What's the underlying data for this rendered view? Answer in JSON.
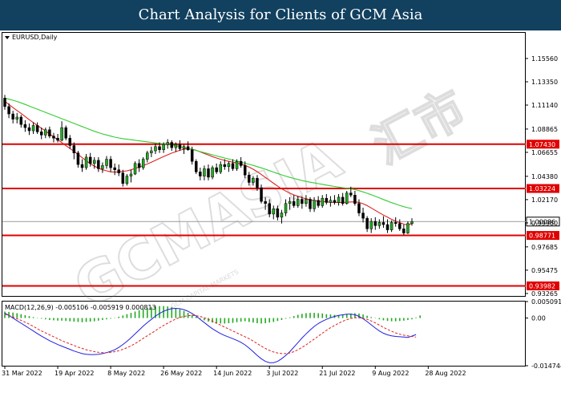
{
  "header": {
    "title": "Chart Analysis for Clients of GCM Asia"
  },
  "chart_data": {
    "type": "candlestick",
    "symbol_label": "EURUSD,Daily",
    "price_ylim": [
      0.9303,
      1.1799
    ],
    "price_ticks": [
      "1.15560",
      "1.13350",
      "1.11140",
      "1.08865",
      "1.06655",
      "1.04380",
      "1.02170",
      "0.99960",
      "0.97685",
      "0.95475",
      "0.93265"
    ],
    "current_price": "1.00086",
    "current_price_value": 1.00086,
    "horizontal_levels": [
      {
        "label": "1.07430",
        "value": 1.0743
      },
      {
        "label": "1.03224",
        "value": 1.03224
      },
      {
        "label": "0.98771",
        "value": 0.98771
      },
      {
        "label": "0.93982",
        "value": 0.93982
      }
    ],
    "x_tick_labels": [
      "31 Mar 2022",
      "19 Apr 2022",
      "8 May 2022",
      "26 May 2022",
      "14 Jun 2022",
      "3 Jul 2022",
      "21 Jul 2022",
      "9 Aug 2022",
      "28 Aug 2022"
    ],
    "x_tick_bar_index": [
      0,
      13,
      26,
      39,
      52,
      65,
      78,
      91,
      104
    ],
    "candles": [
      [
        1.118,
        1.121,
        1.107,
        1.11
      ],
      [
        1.11,
        1.113,
        1.099,
        1.103
      ],
      [
        1.103,
        1.106,
        1.094,
        1.098
      ],
      [
        1.098,
        1.104,
        1.094,
        1.1
      ],
      [
        1.1,
        1.102,
        1.09,
        1.093
      ],
      [
        1.093,
        1.097,
        1.086,
        1.09
      ],
      [
        1.09,
        1.094,
        1.083,
        1.087
      ],
      [
        1.087,
        1.095,
        1.084,
        1.092
      ],
      [
        1.092,
        1.095,
        1.084,
        1.086
      ],
      [
        1.086,
        1.09,
        1.079,
        1.083
      ],
      [
        1.083,
        1.09,
        1.08,
        1.088
      ],
      [
        1.088,
        1.091,
        1.08,
        1.082
      ],
      [
        1.082,
        1.085,
        1.076,
        1.08
      ],
      [
        1.08,
        1.084,
        1.076,
        1.078
      ],
      [
        1.078,
        1.096,
        1.077,
        1.09
      ],
      [
        1.09,
        1.092,
        1.078,
        1.08
      ],
      [
        1.08,
        1.083,
        1.07,
        1.073
      ],
      [
        1.073,
        1.076,
        1.06,
        1.066
      ],
      [
        1.066,
        1.068,
        1.052,
        1.055
      ],
      [
        1.055,
        1.06,
        1.048,
        1.052
      ],
      [
        1.052,
        1.065,
        1.05,
        1.062
      ],
      [
        1.062,
        1.066,
        1.053,
        1.056
      ],
      [
        1.056,
        1.062,
        1.051,
        1.059
      ],
      [
        1.059,
        1.062,
        1.048,
        1.051
      ],
      [
        1.051,
        1.057,
        1.047,
        1.054
      ],
      [
        1.054,
        1.063,
        1.051,
        1.06
      ],
      [
        1.06,
        1.063,
        1.048,
        1.052
      ],
      [
        1.052,
        1.056,
        1.045,
        1.05
      ],
      [
        1.05,
        1.055,
        1.044,
        1.047
      ],
      [
        1.047,
        1.05,
        1.034,
        1.037
      ],
      [
        1.037,
        1.046,
        1.035,
        1.044
      ],
      [
        1.044,
        1.05,
        1.038,
        1.046
      ],
      [
        1.046,
        1.058,
        1.045,
        1.056
      ],
      [
        1.056,
        1.06,
        1.048,
        1.052
      ],
      [
        1.052,
        1.062,
        1.05,
        1.06
      ],
      [
        1.06,
        1.068,
        1.057,
        1.066
      ],
      [
        1.066,
        1.072,
        1.062,
        1.068
      ],
      [
        1.068,
        1.075,
        1.065,
        1.072
      ],
      [
        1.072,
        1.076,
        1.066,
        1.069
      ],
      [
        1.069,
        1.076,
        1.066,
        1.074
      ],
      [
        1.074,
        1.079,
        1.07,
        1.076
      ],
      [
        1.076,
        1.078,
        1.068,
        1.071
      ],
      [
        1.071,
        1.076,
        1.067,
        1.074
      ],
      [
        1.074,
        1.078,
        1.068,
        1.07
      ],
      [
        1.07,
        1.074,
        1.065,
        1.072
      ],
      [
        1.072,
        1.077,
        1.068,
        1.069
      ],
      [
        1.069,
        1.072,
        1.055,
        1.058
      ],
      [
        1.058,
        1.06,
        1.046,
        1.048
      ],
      [
        1.048,
        1.052,
        1.04,
        1.044
      ],
      [
        1.044,
        1.054,
        1.04,
        1.051
      ],
      [
        1.051,
        1.055,
        1.04,
        1.043
      ],
      [
        1.043,
        1.054,
        1.041,
        1.052
      ],
      [
        1.052,
        1.056,
        1.046,
        1.048
      ],
      [
        1.048,
        1.058,
        1.046,
        1.055
      ],
      [
        1.055,
        1.06,
        1.05,
        1.053
      ],
      [
        1.053,
        1.058,
        1.048,
        1.056
      ],
      [
        1.056,
        1.06,
        1.049,
        1.051
      ],
      [
        1.051,
        1.06,
        1.049,
        1.058
      ],
      [
        1.058,
        1.062,
        1.052,
        1.054
      ],
      [
        1.054,
        1.058,
        1.042,
        1.045
      ],
      [
        1.045,
        1.048,
        1.035,
        1.038
      ],
      [
        1.038,
        1.044,
        1.035,
        1.042
      ],
      [
        1.042,
        1.045,
        1.03,
        1.033
      ],
      [
        1.033,
        1.036,
        1.018,
        1.02
      ],
      [
        1.02,
        1.024,
        1.012,
        1.018
      ],
      [
        1.018,
        1.022,
        1.005,
        1.008
      ],
      [
        1.008,
        1.016,
        1.003,
        1.013
      ],
      [
        1.013,
        1.016,
        1.002,
        1.005
      ],
      [
        1.005,
        1.012,
        0.999,
        1.009
      ],
      [
        1.009,
        1.022,
        1.006,
        1.018
      ],
      [
        1.018,
        1.024,
        1.012,
        1.02
      ],
      [
        1.02,
        1.026,
        1.014,
        1.016
      ],
      [
        1.016,
        1.025,
        1.014,
        1.022
      ],
      [
        1.022,
        1.025,
        1.013,
        1.018
      ],
      [
        1.018,
        1.026,
        1.015,
        1.022
      ],
      [
        1.022,
        1.024,
        1.01,
        1.013
      ],
      [
        1.013,
        1.024,
        1.01,
        1.021
      ],
      [
        1.021,
        1.025,
        1.014,
        1.016
      ],
      [
        1.016,
        1.026,
        1.014,
        1.023
      ],
      [
        1.023,
        1.027,
        1.017,
        1.019
      ],
      [
        1.019,
        1.025,
        1.015,
        1.021
      ],
      [
        1.021,
        1.026,
        1.017,
        1.019
      ],
      [
        1.019,
        1.027,
        1.016,
        1.024
      ],
      [
        1.024,
        1.028,
        1.016,
        1.018
      ],
      [
        1.018,
        1.03,
        1.017,
        1.028
      ],
      [
        1.028,
        1.034,
        1.024,
        1.026
      ],
      [
        1.026,
        1.03,
        1.016,
        1.018
      ],
      [
        1.018,
        1.022,
        1.006,
        1.009
      ],
      [
        1.009,
        1.014,
        1.0,
        1.004
      ],
      [
        1.004,
        1.006,
        0.991,
        0.994
      ],
      [
        0.994,
        1.004,
        0.99,
        1.001
      ],
      [
        1.001,
        1.005,
        0.993,
        0.997
      ],
      [
        0.997,
        1.003,
        0.994,
        1.0
      ],
      [
        1.0,
        1.006,
        0.995,
        0.998
      ],
      [
        0.998,
        1.003,
        0.99,
        0.993
      ],
      [
        0.993,
        1.002,
        0.991,
        1.0
      ],
      [
        1.0,
        1.005,
        0.996,
        0.999
      ],
      [
        0.999,
        1.003,
        0.992,
        0.994
      ],
      [
        0.994,
        0.998,
        0.988,
        0.99
      ],
      [
        0.99,
        1.001,
        0.989,
        0.999
      ],
      [
        0.999,
        1.004,
        0.997,
        1.0009
      ]
    ],
    "series": [
      {
        "name": "",
        "color": "#e02020",
        "values": [
          1.115,
          1.112,
          1.109,
          1.1062,
          1.1035,
          1.1005,
          1.0975,
          1.0948,
          1.092,
          1.0895,
          1.0868,
          1.084,
          1.0812,
          1.0785,
          1.0758,
          1.073,
          1.0702,
          1.0675,
          1.0645,
          1.0615,
          1.0585,
          1.0558,
          1.0535,
          1.0515,
          1.05,
          1.049,
          1.048,
          1.0478,
          1.048,
          1.0485,
          1.049,
          1.05,
          1.0512,
          1.0525,
          1.054,
          1.0555,
          1.0572,
          1.059,
          1.0608,
          1.0625,
          1.0642,
          1.0658,
          1.0672,
          1.0685,
          1.0695,
          1.07,
          1.0695,
          1.0685,
          1.067,
          1.0655,
          1.064,
          1.0625,
          1.0612,
          1.06,
          1.059,
          1.058,
          1.0572,
          1.0565,
          1.0555,
          1.0542,
          1.0525,
          1.0505,
          1.0482,
          1.0455,
          1.0428,
          1.04,
          1.0372,
          1.0345,
          1.032,
          1.0298,
          1.0278,
          1.0262,
          1.0248,
          1.0235,
          1.0225,
          1.0215,
          1.0208,
          1.0202,
          1.0198,
          1.0195,
          1.0192,
          1.019,
          1.019,
          1.019,
          1.0192,
          1.0195,
          1.0196,
          1.019,
          1.0178,
          1.016,
          1.0138,
          1.0115,
          1.0092,
          1.007,
          1.005,
          1.003,
          1.0012,
          0.9998,
          0.9985,
          0.9975,
          0.999
        ]
      },
      {
        "name": "",
        "color": "#33cc33",
        "values": [
          1.118,
          1.117,
          1.116,
          1.1148,
          1.1135,
          1.112,
          1.1105,
          1.109,
          1.1075,
          1.106,
          1.1045,
          1.103,
          1.1015,
          1.1,
          1.0985,
          1.097,
          1.0955,
          1.094,
          1.0925,
          1.091,
          1.0895,
          1.088,
          1.0865,
          1.0852,
          1.084,
          1.083,
          1.082,
          1.081,
          1.0802,
          1.0795,
          1.079,
          1.0785,
          1.078,
          1.0775,
          1.077,
          1.0765,
          1.076,
          1.0755,
          1.075,
          1.0745,
          1.074,
          1.0735,
          1.0728,
          1.072,
          1.0712,
          1.0703,
          1.0693,
          1.0683,
          1.0673,
          1.0663,
          1.0652,
          1.0642,
          1.0632,
          1.0622,
          1.0612,
          1.0602,
          1.0592,
          1.0582,
          1.0572,
          1.0562,
          1.0552,
          1.0542,
          1.053,
          1.0518,
          1.0505,
          1.0492,
          1.0478,
          1.0465,
          1.0452,
          1.044,
          1.0428,
          1.0418,
          1.0408,
          1.0398,
          1.039,
          1.0382,
          1.0375,
          1.0368,
          1.0362,
          1.0355,
          1.0348,
          1.0342,
          1.0336,
          1.033,
          1.0325,
          1.032,
          1.0312,
          1.0302,
          1.029,
          1.0277,
          1.0263,
          1.0248,
          1.0233,
          1.0218,
          1.0203,
          1.0188,
          1.0175,
          1.0162,
          1.015,
          1.014,
          1.0132
        ]
      }
    ],
    "macd": {
      "label": "MACD(12,26,9) -0.005106 -0.005919 0.000813",
      "ylim": [
        -0.01475,
        0.0051
      ],
      "ticks": [
        "0.005091",
        "0.00",
        "-0.014744"
      ],
      "histogram": [
        0.002,
        0.0019,
        0.0017,
        0.0015,
        0.0012,
        0.0009,
        0.0006,
        0.0003,
        0.0001,
        -0.0002,
        -0.0004,
        -0.0006,
        -0.0007,
        -0.0008,
        -0.0008,
        -0.0009,
        -0.001,
        -0.0011,
        -0.0012,
        -0.0013,
        -0.0012,
        -0.0011,
        -0.001,
        -0.0008,
        -0.0006,
        -0.0004,
        -0.0002,
        0.0001,
        0.0004,
        0.0008,
        0.0012,
        0.0016,
        0.002,
        0.0024,
        0.0028,
        0.0031,
        0.0034,
        0.0036,
        0.0037,
        0.0037,
        0.0036,
        0.0034,
        0.0031,
        0.0027,
        0.0022,
        0.0016,
        0.001,
        0.0004,
        -0.0002,
        -0.0007,
        -0.0011,
        -0.0014,
        -0.0016,
        -0.0017,
        -0.0017,
        -0.0016,
        -0.0015,
        -0.0013,
        -0.0011,
        -0.001,
        -0.0012,
        -0.0014,
        -0.0016,
        -0.0017,
        -0.0016,
        -0.0014,
        -0.0012,
        -0.0009,
        -0.0006,
        -0.0002,
        0.0002,
        0.0006,
        0.001,
        0.0013,
        0.0015,
        0.0016,
        0.0016,
        0.0015,
        0.0014,
        0.0012,
        0.0011,
        0.001,
        0.0009,
        0.001,
        0.0012,
        0.0014,
        0.0015,
        0.0014,
        0.0011,
        0.0007,
        0.0003,
        -0.0001,
        -0.0004,
        -0.0007,
        -0.0009,
        -0.001,
        -0.001,
        -0.0009,
        -0.0008,
        -0.0006,
        -0.0004,
        0.0002,
        0.0008
      ],
      "macd_line": [
        0.0015,
        0.0008,
        0.0,
        -0.0008,
        -0.0016,
        -0.0024,
        -0.0032,
        -0.004,
        -0.0048,
        -0.0056,
        -0.0063,
        -0.007,
        -0.0076,
        -0.0082,
        -0.0087,
        -0.0092,
        -0.0097,
        -0.0102,
        -0.0106,
        -0.011,
        -0.0112,
        -0.0113,
        -0.0113,
        -0.0112,
        -0.011,
        -0.0107,
        -0.0103,
        -0.0098,
        -0.0091,
        -0.0082,
        -0.0072,
        -0.0061,
        -0.0049,
        -0.0037,
        -0.0025,
        -0.0014,
        -0.0004,
        0.0006,
        0.0014,
        0.0021,
        0.0026,
        0.0029,
        0.003,
        0.0029,
        0.0026,
        0.0021,
        0.0014,
        0.0006,
        -0.0004,
        -0.0014,
        -0.0024,
        -0.0033,
        -0.0041,
        -0.0048,
        -0.0054,
        -0.0059,
        -0.0064,
        -0.0069,
        -0.0075,
        -0.0083,
        -0.0093,
        -0.0104,
        -0.0116,
        -0.0126,
        -0.0134,
        -0.0138,
        -0.0138,
        -0.0134,
        -0.0126,
        -0.0116,
        -0.0104,
        -0.009,
        -0.0076,
        -0.0062,
        -0.0049,
        -0.0037,
        -0.0026,
        -0.0017,
        -0.001,
        -0.0004,
        0.0001,
        0.0005,
        0.0008,
        0.001,
        0.0012,
        0.0012,
        0.001,
        0.0005,
        -0.0002,
        -0.0011,
        -0.0021,
        -0.0031,
        -0.004,
        -0.0047,
        -0.0052,
        -0.0055,
        -0.0057,
        -0.0058,
        -0.0059,
        -0.006,
        -0.0056,
        -0.0051
      ],
      "signal_line": [
        0.0012,
        0.0008,
        0.0003,
        -0.0002,
        -0.0007,
        -0.0013,
        -0.0019,
        -0.0026,
        -0.0033,
        -0.004,
        -0.0046,
        -0.0052,
        -0.0058,
        -0.0064,
        -0.007,
        -0.0075,
        -0.008,
        -0.0085,
        -0.009,
        -0.0094,
        -0.0098,
        -0.0101,
        -0.0104,
        -0.0106,
        -0.0107,
        -0.0107,
        -0.0106,
        -0.0104,
        -0.0101,
        -0.0097,
        -0.0092,
        -0.0086,
        -0.0079,
        -0.0071,
        -0.0063,
        -0.0055,
        -0.0047,
        -0.0039,
        -0.0031,
        -0.0023,
        -0.0016,
        -0.0009,
        -0.0003,
        0.0002,
        0.0005,
        0.0007,
        0.0008,
        0.0007,
        0.0005,
        0.0001,
        -0.0004,
        -0.001,
        -0.0016,
        -0.0022,
        -0.0028,
        -0.0034,
        -0.004,
        -0.0046,
        -0.0052,
        -0.0058,
        -0.0064,
        -0.0071,
        -0.0079,
        -0.0087,
        -0.0094,
        -0.01,
        -0.0105,
        -0.0108,
        -0.011,
        -0.011,
        -0.0108,
        -0.0104,
        -0.0098,
        -0.0091,
        -0.0083,
        -0.0074,
        -0.0065,
        -0.0056,
        -0.0047,
        -0.0038,
        -0.003,
        -0.0023,
        -0.0016,
        -0.001,
        -0.0005,
        -0.0001,
        0.0001,
        0.0001,
        -0.0001,
        -0.0004,
        -0.0009,
        -0.0015,
        -0.0022,
        -0.0029,
        -0.0035,
        -0.0041,
        -0.0046,
        -0.005,
        -0.0053,
        -0.0055,
        -0.0057,
        -0.0059
      ],
      "colors": {
        "histogram": "#22aa22",
        "macd_line": "#2020e0",
        "signal_line": "#e02020"
      }
    },
    "level_color": "#e00000",
    "bull_color": "#22aa22",
    "bear_color": "#000000"
  },
  "watermark": {
    "main": "GCMASIA",
    "cn": "汇市",
    "sub": "GCM CAPITAL MARKETS"
  }
}
